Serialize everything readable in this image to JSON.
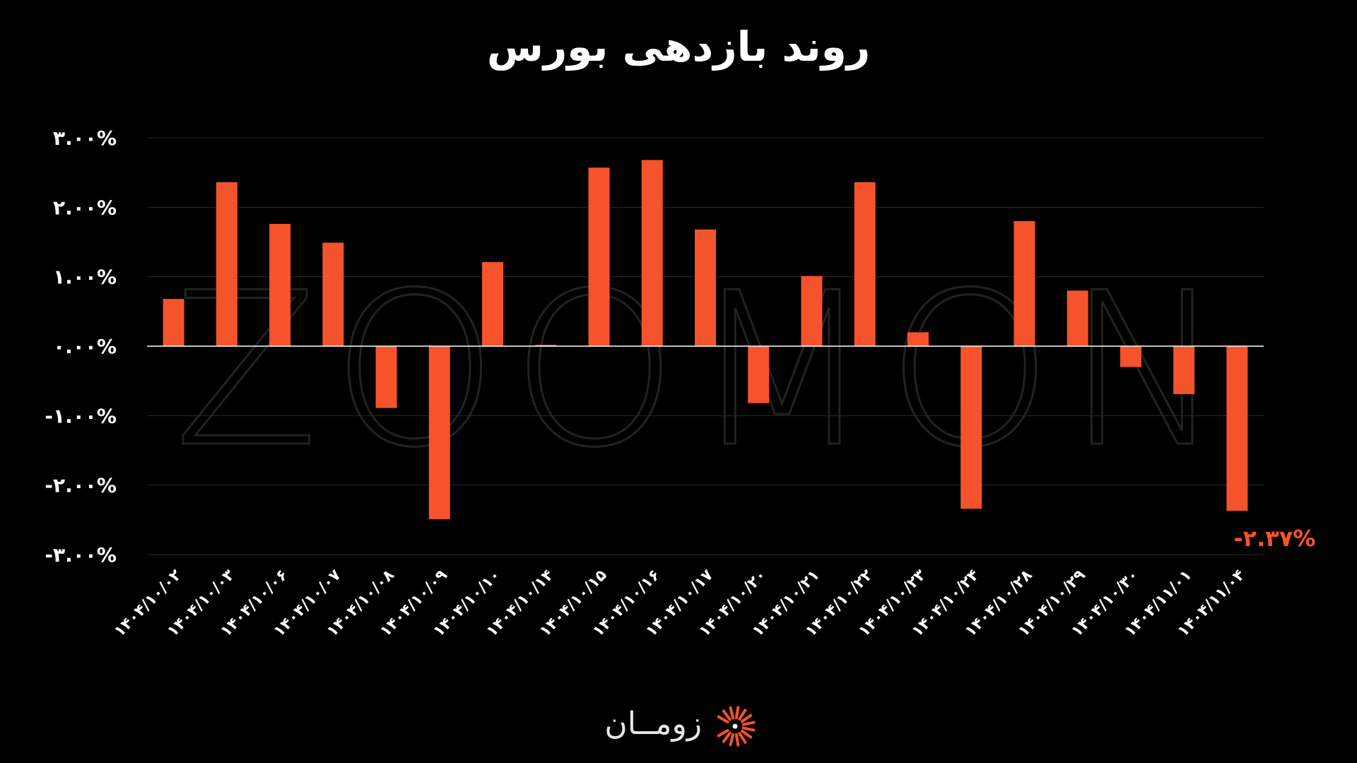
{
  "colors": {
    "background": "#000000",
    "bar": "#f4532b",
    "text": "#ffffff",
    "axis": "#ffffff",
    "grid": "#2a2a2a",
    "label_highlight": "#f4532b",
    "watermark": "#222222"
  },
  "watermark": {
    "text": "ZOOMON"
  },
  "brand": {
    "name": "زومــان",
    "logo_icon": "sunburst-logo-icon"
  },
  "chart_data": {
    "type": "bar",
    "title": "روند بازدهی بورس",
    "xlabel": "",
    "ylabel": "",
    "ylim": [
      -3,
      3
    ],
    "yticks": [
      3,
      2,
      1,
      0,
      -1,
      -2,
      -3
    ],
    "ytick_labels": [
      "۳.۰۰%",
      "۲.۰۰%",
      "۱.۰۰%",
      "۰.۰۰%",
      "-۱.۰۰%",
      "-۲.۰۰%",
      "-۳.۰۰%"
    ],
    "grid": true,
    "legend": "none",
    "categories": [
      "۱۴۰۴/۱۰/۰۲",
      "۱۴۰۴/۱۰/۰۳",
      "۱۴۰۴/۱۰/۰۶",
      "۱۴۰۴/۱۰/۰۷",
      "۱۴۰۴/۱۰/۰۸",
      "۱۴۰۴/۱۰/۰۹",
      "۱۴۰۴/۱۰/۱۰",
      "۱۴۰۴/۱۰/۱۴",
      "۱۴۰۴/۱۰/۱۵",
      "۱۴۰۴/۱۰/۱۶",
      "۱۴۰۴/۱۰/۱۷",
      "۱۴۰۴/۱۰/۲۰",
      "۱۴۰۴/۱۰/۲۱",
      "۱۴۰۴/۱۰/۲۲",
      "۱۴۰۴/۱۰/۲۳",
      "۱۴۰۴/۱۰/۲۴",
      "۱۴۰۴/۱۰/۲۸",
      "۱۴۰۴/۱۰/۲۹",
      "۱۴۰۴/۱۰/۳۰",
      "۱۴۰۴/۱۱/۰۱",
      "۱۴۰۴/۱۱/۰۴"
    ],
    "values": [
      0.68,
      2.36,
      1.76,
      1.49,
      -0.89,
      -2.49,
      1.21,
      0.02,
      2.57,
      2.68,
      1.68,
      -0.82,
      1.01,
      2.36,
      0.2,
      -2.34,
      1.8,
      0.8,
      -0.3,
      -0.69,
      -2.37
    ],
    "data_labels": [
      {
        "index": 20,
        "text": "-۲.۳۷%"
      }
    ]
  }
}
